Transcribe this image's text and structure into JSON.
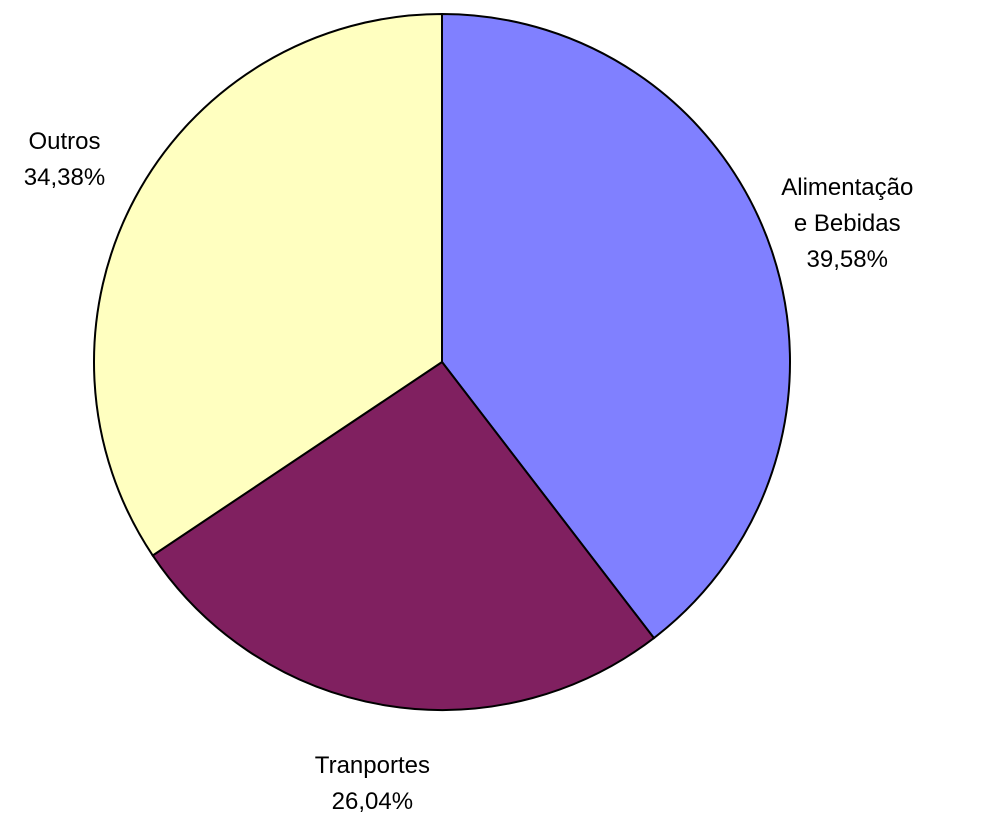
{
  "chart_data": {
    "type": "pie",
    "categories": [
      "Alimentação e Bebidas",
      "Tranportes",
      "Outros"
    ],
    "values": [
      39.58,
      26.04,
      34.38
    ],
    "value_labels": [
      "39,58%",
      "26,04%",
      "34,38%"
    ],
    "colors": [
      "#8080ff",
      "#802060",
      "#ffffc0"
    ]
  }
}
